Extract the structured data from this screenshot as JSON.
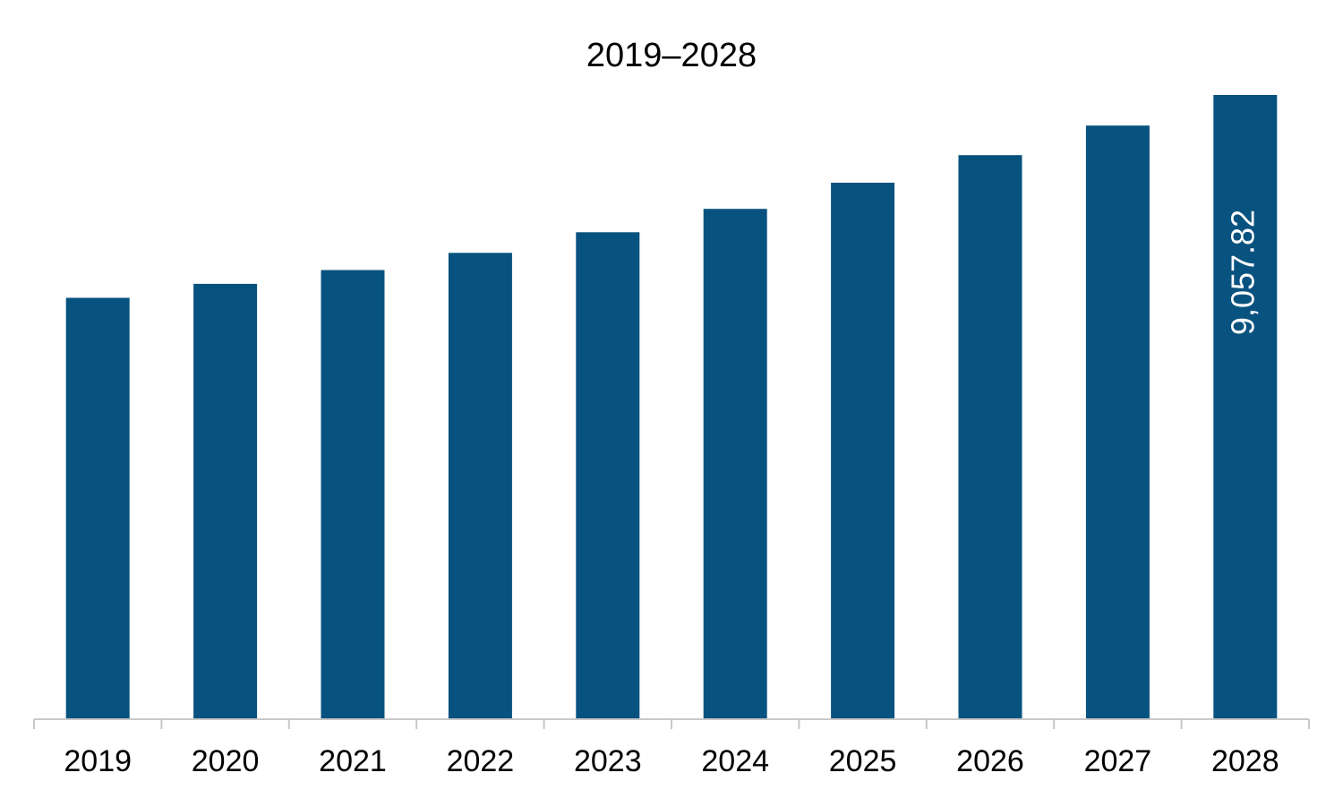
{
  "chart_data": {
    "type": "bar",
    "title": "2019–2028",
    "xlabel": "",
    "ylabel": "",
    "categories": [
      "2019",
      "2020",
      "2021",
      "2022",
      "2023",
      "2024",
      "2025",
      "2026",
      "2027",
      "2028"
    ],
    "values": [
      6110,
      6313,
      6513,
      6763,
      7063,
      7403,
      7783,
      8183,
      8613,
      9057.82
    ],
    "ylim": [
      0,
      9057.82
    ],
    "data_labels": [
      {
        "category": "2028",
        "text": "9,057.82"
      }
    ],
    "grid": false,
    "legend": "none",
    "colors": {
      "bar": "#08527F",
      "axis": "#C8C8C8",
      "text": "#000000",
      "data_label": "#FFFFFF"
    }
  }
}
